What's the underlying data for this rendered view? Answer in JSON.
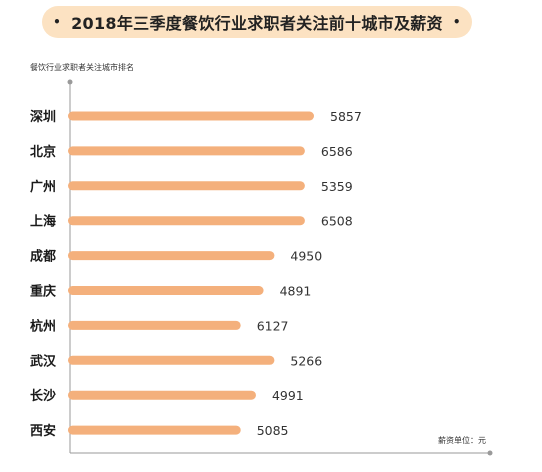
{
  "title": "2018年三季度餐饮行业求职者关注前十城市及薪资",
  "title_dot": "•",
  "chart_data": {
    "type": "bar",
    "orientation": "horizontal",
    "y_axis_title": "餐饮行业求职者关注城市排名",
    "unit_label": "薪资单位：元",
    "categories": [
      "深圳",
      "北京",
      "广州",
      "上海",
      "成都",
      "重庆",
      "杭州",
      "武汉",
      "长沙",
      "西安"
    ],
    "values": [
      5857,
      6586,
      5359,
      6508,
      4950,
      4891,
      6127,
      5266,
      4991,
      5085
    ],
    "bar_length_fraction": [
      1.0,
      0.963,
      0.963,
      0.963,
      0.839,
      0.795,
      0.702,
      0.839,
      0.764,
      0.702
    ],
    "colors": {
      "bar": "#f4b07c",
      "axis": "#9a9a9a",
      "title_bg": "#fce2c2"
    }
  }
}
